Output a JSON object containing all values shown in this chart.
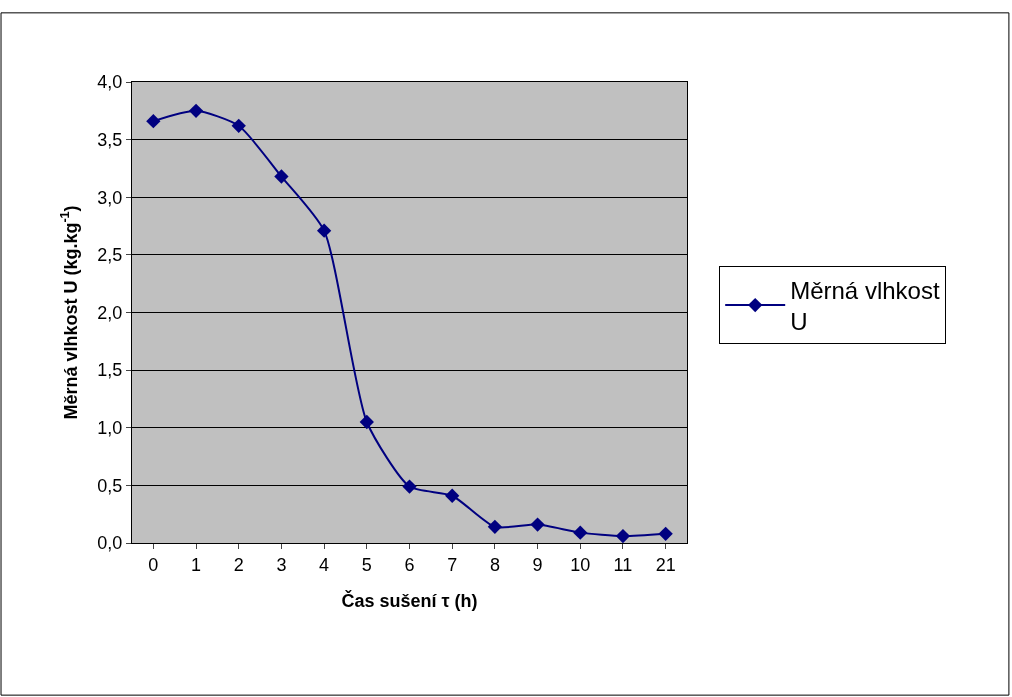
{
  "chart_data": {
    "type": "line",
    "xlabel": "Čas sušení τ (h)",
    "ylabel": "Měrná vlhkost U (kg.kg$^{-1}$)",
    "categories": [
      "0",
      "1",
      "2",
      "3",
      "4",
      "5",
      "6",
      "7",
      "8",
      "9",
      "10",
      "11",
      "21"
    ],
    "series": [
      {
        "name": "Měrná vlhkost U",
        "color": "#000080",
        "values": [
          3.66,
          3.75,
          3.62,
          3.18,
          2.71,
          1.05,
          0.49,
          0.41,
          0.14,
          0.16,
          0.09,
          0.06,
          0.08
        ]
      }
    ],
    "ylim": [
      0,
      4
    ],
    "yticks": [
      {
        "value": 0,
        "label": "0,0"
      },
      {
        "value": 0.5,
        "label": "0,5"
      },
      {
        "value": 1,
        "label": "1,0"
      },
      {
        "value": 1.5,
        "label": "1,5"
      },
      {
        "value": 2,
        "label": "2,0"
      },
      {
        "value": 2.5,
        "label": "2,5"
      },
      {
        "value": 3,
        "label": "3,0"
      },
      {
        "value": 3.5,
        "label": "3,5"
      },
      {
        "value": 4,
        "label": "4,0"
      }
    ],
    "grid": "y",
    "legend": "right",
    "marker": "diamond",
    "line_style": "solid"
  }
}
